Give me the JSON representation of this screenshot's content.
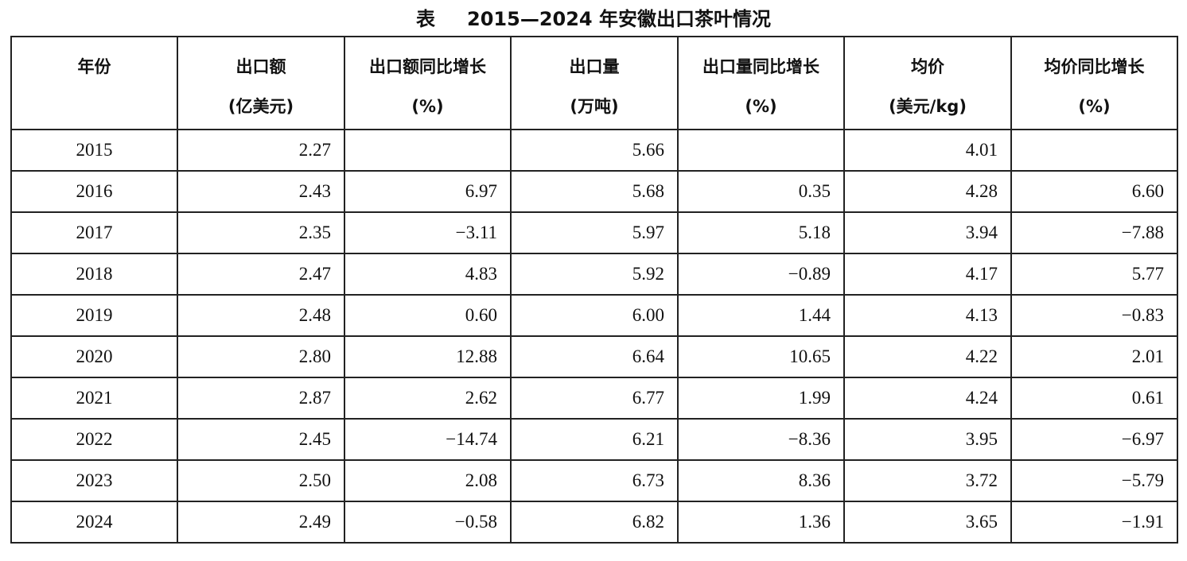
{
  "header": {
    "label": "表",
    "title": "2015—2024 年安徽出口茶叶情况"
  },
  "table": {
    "columns": [
      [
        "年份"
      ],
      [
        "出口额",
        "(亿美元)"
      ],
      [
        "出口额同比增长",
        "(%)"
      ],
      [
        "出口量",
        "(万吨)"
      ],
      [
        "出口量同比增长",
        "(%)"
      ],
      [
        "均价",
        "(美元/kg)"
      ],
      [
        "均价同比增长",
        "(%)"
      ]
    ],
    "rows": [
      [
        "2015",
        "2.27",
        null,
        "5.66",
        null,
        "4.01",
        null
      ],
      [
        "2016",
        "2.43",
        "6.97",
        "5.68",
        "0.35",
        "4.28",
        "6.60"
      ],
      [
        "2017",
        "2.35",
        "−3.11",
        "5.97",
        "5.18",
        "3.94",
        "−7.88"
      ],
      [
        "2018",
        "2.47",
        "4.83",
        "5.92",
        "−0.89",
        "4.17",
        "5.77"
      ],
      [
        "2019",
        "2.48",
        "0.60",
        "6.00",
        "1.44",
        "4.13",
        "−0.83"
      ],
      [
        "2020",
        "2.80",
        "12.88",
        "6.64",
        "10.65",
        "4.22",
        "2.01"
      ],
      [
        "2021",
        "2.87",
        "2.62",
        "6.77",
        "1.99",
        "4.24",
        "0.61"
      ],
      [
        "2022",
        "2.45",
        "−14.74",
        "6.21",
        "−8.36",
        "3.95",
        "−6.97"
      ],
      [
        "2023",
        "2.50",
        "2.08",
        "6.73",
        "8.36",
        "3.72",
        "−5.79"
      ],
      [
        "2024",
        "2.49",
        "−0.58",
        "6.82",
        "1.36",
        "3.65",
        "−1.91"
      ]
    ]
  }
}
